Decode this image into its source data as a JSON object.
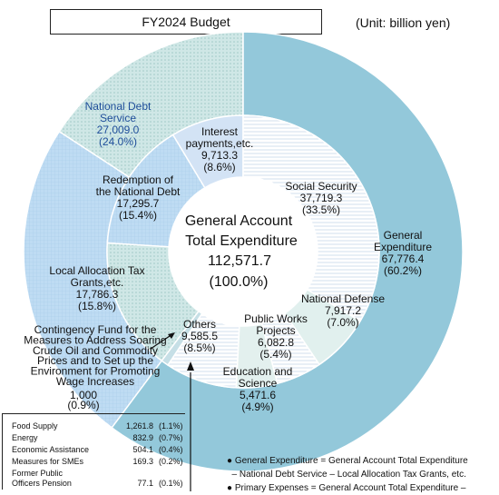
{
  "header": {
    "title": "FY2024 Budget",
    "unit": "(Unit: billion yen)"
  },
  "chart_data": {
    "type": "pie",
    "title": "FY2024 Budget",
    "center": {
      "line1": "General Account",
      "line2": "Total Expenditure",
      "value": "112,571.7",
      "pct": "(100.0%)"
    },
    "outer_ring": [
      {
        "label_lines": [
          "National Debt",
          "Service"
        ],
        "value_text": "27,009.0",
        "pct_text": "(24.0%)",
        "value": 27009.0,
        "color": "#c6e0f4"
      },
      {
        "label_lines": [
          "Local Allocation Tax",
          "Grants,etc."
        ],
        "value_text": "17,786.3",
        "pct_text": "(15.8%)",
        "value": 17786.3,
        "color": "#d7ecec"
      },
      {
        "label_lines": [
          "General",
          "Expenditure"
        ],
        "value_text": "67,776.4",
        "pct_text": "(60.2%)",
        "value": 67776.4,
        "color": "#93c8da"
      }
    ],
    "inner_ring": [
      {
        "label_lines": [
          "Interest",
          "payments,etc."
        ],
        "value_text": "9,713.3",
        "pct_text": "(8.6%)",
        "value": 9713.3,
        "color": "#d3e3f5"
      },
      {
        "label_lines": [
          "Redemption of",
          "the National Debt"
        ],
        "value_text": "17,295.7",
        "pct_text": "(15.4%)",
        "value": 17295.7,
        "color": "#a9d0f2"
      },
      {
        "label_lines": [
          "Local Allocation Tax",
          "Grants,etc."
        ],
        "value_text": "17,786.3",
        "pct_text": "(15.8%)",
        "value": 17786.3,
        "color": "#d7ecec"
      },
      {
        "label_lines": [
          "Contingency Fund for the",
          "Measures to Address Soaring",
          "Crude Oil and Commodity",
          "Prices and to Set up the",
          "Environment for Promoting",
          "Wage Increases"
        ],
        "value_text": "1,000",
        "pct_text": "(0.9%)",
        "value": 1000.0,
        "color": "#c6dfe6"
      },
      {
        "label_lines": [
          "Others"
        ],
        "value_text": "9,585.5",
        "pct_text": "(8.5%)",
        "value": 9585.5,
        "color": "#f5f8fb"
      },
      {
        "label_lines": [
          "Education and",
          "Science"
        ],
        "value_text": "5,471.6",
        "pct_text": "(4.9%)",
        "value": 5471.6,
        "color": "#e3f0ee"
      },
      {
        "label_lines": [
          "Public Works",
          "Projects"
        ],
        "value_text": "6,082.8",
        "pct_text": "(5.4%)",
        "value": 6082.8,
        "color": "#eef4fb"
      },
      {
        "label_lines": [
          "National Defense"
        ],
        "value_text": "7,917.2",
        "pct_text": "(7.0%)",
        "value": 7917.2,
        "color": "#e1f0ee"
      },
      {
        "label_lines": [
          "Social Security"
        ],
        "value_text": "37,719.3",
        "pct_text": "(33.5%)",
        "value": 37719.3,
        "color": "#f0f5fa"
      }
    ],
    "others_breakdown": [
      {
        "name": "Food Supply",
        "value": "1,261.8",
        "pct": "(1.1%)"
      },
      {
        "name": "Energy",
        "value": "832.9",
        "pct": "(0.7%)"
      },
      {
        "name": "Economic Assistance",
        "value": "504.1",
        "pct": "(0.4%)"
      },
      {
        "name": "Measures for SMEs",
        "value": "169.3",
        "pct": "(0.2%)"
      },
      {
        "name": "Former Public\nOfficers Pension",
        "value": "77.1",
        "pct": "(0.1%)"
      }
    ],
    "notes": [
      "● General Expenditure = General Account Total Expenditure",
      "  – National Debt Service – Local Allocation Tax Grants, etc.",
      "● Primary Expenses = General Account Total Expenditure –"
    ]
  }
}
